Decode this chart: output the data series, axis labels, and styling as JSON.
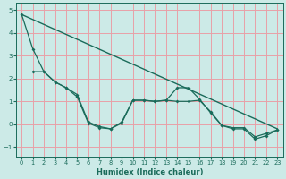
{
  "xlabel": "Humidex (Indice chaleur)",
  "bg_color": "#cceae7",
  "grid_color": "#e8a0a8",
  "line_color": "#1a6b5a",
  "xlim": [
    -0.5,
    23.5
  ],
  "ylim": [
    -1.4,
    5.3
  ],
  "xticks": [
    0,
    1,
    2,
    3,
    4,
    5,
    6,
    7,
    8,
    9,
    10,
    11,
    12,
    13,
    14,
    15,
    16,
    17,
    18,
    19,
    20,
    21,
    22,
    23
  ],
  "yticks": [
    -1,
    0,
    1,
    2,
    3,
    4,
    5
  ],
  "line1_x": [
    0,
    23
  ],
  "line1_y": [
    4.8,
    -0.2
  ],
  "line2_x": [
    0,
    1,
    2,
    3,
    4,
    5,
    6,
    7,
    8,
    9,
    10,
    11,
    12,
    13,
    14,
    15,
    16,
    17,
    18,
    19,
    20,
    21,
    22,
    23
  ],
  "line2_y": [
    4.8,
    3.3,
    2.3,
    1.85,
    1.6,
    1.2,
    0.05,
    -0.15,
    -0.2,
    0.05,
    1.05,
    1.05,
    1.0,
    1.05,
    1.6,
    1.6,
    1.1,
    0.5,
    -0.05,
    -0.2,
    -0.2,
    -0.65,
    -0.5,
    -0.25
  ],
  "line3_x": [
    1,
    2,
    3,
    4,
    5,
    6,
    7,
    8,
    9,
    10,
    11,
    12,
    13,
    14,
    15,
    16,
    17,
    18,
    19,
    20,
    21,
    22,
    23
  ],
  "line3_y": [
    2.3,
    2.3,
    1.85,
    1.6,
    1.3,
    0.1,
    -0.1,
    -0.2,
    0.1,
    1.05,
    1.05,
    1.0,
    1.05,
    1.0,
    1.0,
    1.05,
    0.55,
    -0.05,
    -0.15,
    -0.15,
    -0.55,
    -0.4,
    -0.25
  ]
}
